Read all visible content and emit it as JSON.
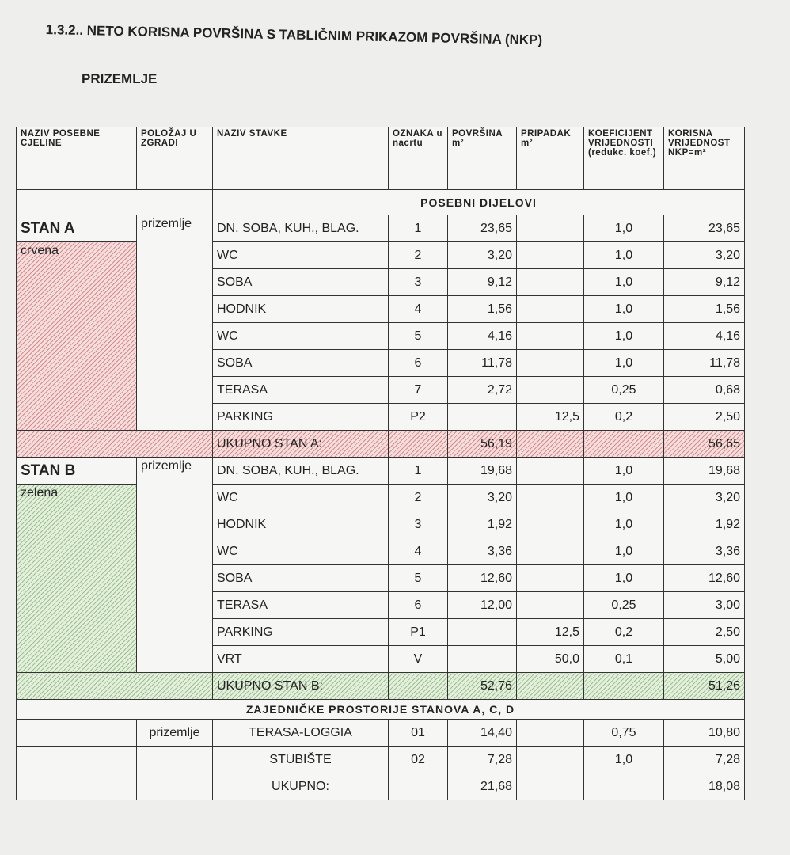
{
  "heading": "1.3.2.. NETO KORISNA POVRŠINA S TABLIČNIM PRIKAZOM POVRŠINA (NKP)",
  "section": "PRIZEMLJE",
  "table": {
    "headers": [
      "NAZIV POSEBNE CJELINE",
      "POLOŽAJ U ZGRADI",
      "NAZIV STAVKE",
      "OZNAKA u nacrtu",
      "POVRŠINA m²",
      "PRIPADAK m²",
      "KOEFICIJENT VRIJEDNOSTI (redukc. koef.)",
      "KORISNA VRIJEDNOST NKP=m²"
    ],
    "group_title": "POSEBNI DIJELOVI",
    "units": [
      {
        "name": "STAN A",
        "color": "crvena",
        "position": "prizemlje",
        "rows": [
          {
            "item": "DN. SOBA, KUH., BLAG.",
            "mark": "1",
            "area": "23,65",
            "coef": "1,0",
            "nkp": "23,65"
          },
          {
            "item": "WC",
            "mark": "2",
            "area": "3,20",
            "coef": "1,0",
            "nkp": "3,20"
          },
          {
            "item": "SOBA",
            "mark": "3",
            "area": "9,12",
            "coef": "1,0",
            "nkp": "9,12"
          },
          {
            "item": "HODNIK",
            "mark": "4",
            "area": "1,56",
            "coef": "1,0",
            "nkp": "1,56"
          },
          {
            "item": "WC",
            "mark": "5",
            "area": "4,16",
            "coef": "1,0",
            "nkp": "4,16"
          },
          {
            "item": "SOBA",
            "mark": "6",
            "area": "11,78",
            "coef": "1,0",
            "nkp": "11,78"
          },
          {
            "item": "TERASA",
            "mark": "7",
            "area": "2,72",
            "coef": "0,25",
            "nkp": "0,68"
          },
          {
            "item": "PARKING",
            "mark": "P2",
            "share": "12,5",
            "coef": "0,2",
            "nkp": "2,50"
          }
        ],
        "total_label": "UKUPNO STAN A:",
        "total_area": "56,19",
        "total_nkp": "56,65"
      },
      {
        "name": "STAN B",
        "color": "zelena",
        "position": "prizemlje",
        "rows": [
          {
            "item": "DN. SOBA, KUH., BLAG.",
            "mark": "1",
            "area": "19,68",
            "coef": "1,0",
            "nkp": "19,68"
          },
          {
            "item": "WC",
            "mark": "2",
            "area": "3,20",
            "coef": "1,0",
            "nkp": "3,20"
          },
          {
            "item": "HODNIK",
            "mark": "3",
            "area": "1,92",
            "coef": "1,0",
            "nkp": "1,92"
          },
          {
            "item": "WC",
            "mark": "4",
            "area": "3,36",
            "coef": "1,0",
            "nkp": "3,36"
          },
          {
            "item": "SOBA",
            "mark": "5",
            "area": "12,60",
            "coef": "1,0",
            "nkp": "12,60"
          },
          {
            "item": "TERASA",
            "mark": "6",
            "area": "12,00",
            "coef": "0,25",
            "nkp": "3,00"
          },
          {
            "item": "PARKING",
            "mark": "P1",
            "share": "12,5",
            "coef": "0,2",
            "nkp": "2,50"
          },
          {
            "item": "VRT",
            "mark": "V",
            "share": "50,0",
            "coef": "0,1",
            "nkp": "5,00"
          }
        ],
        "total_label": "UKUPNO STAN B:",
        "total_area": "52,76",
        "total_nkp": "51,26"
      }
    ],
    "common_title": "ZAJEDNIČKE PROSTORIJE STANOVA A, C, D",
    "common": {
      "position": "prizemlje",
      "rows": [
        {
          "item": "TERASA-LOGGIA",
          "mark": "01",
          "area": "14,40",
          "coef": "0,75",
          "nkp": "10,80"
        },
        {
          "item": "STUBIŠTE",
          "mark": "02",
          "area": "7,28",
          "coef": "1,0",
          "nkp": "7,28"
        }
      ],
      "total_label": "UKUPNO:",
      "total_area": "21,68",
      "total_nkp": "18,08"
    }
  }
}
